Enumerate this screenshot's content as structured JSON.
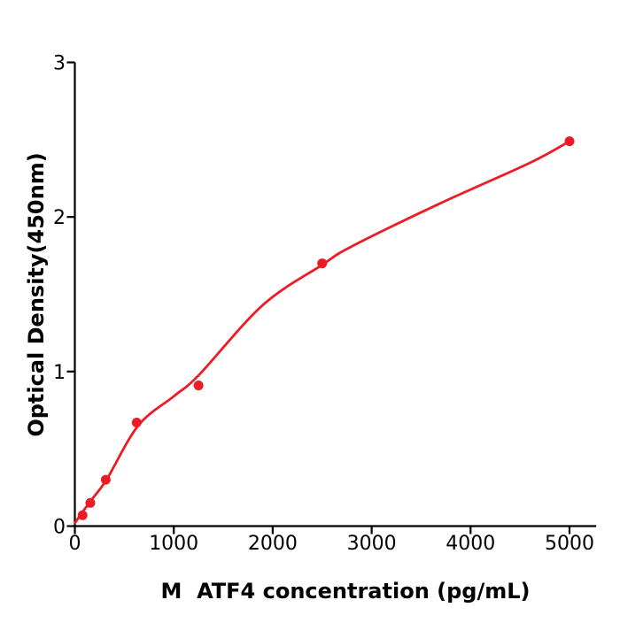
{
  "figure": {
    "background_color": "#ffffff",
    "axis_color": "#000000",
    "accent_color": "#ed1c24"
  },
  "chart_data": {
    "type": "scatter",
    "title": "",
    "xlabel": "M  ATF4 concentration (pg/mL)",
    "ylabel": "Optical Density(450nm)",
    "x_ticks": [
      "0",
      "1000",
      "2000",
      "3000",
      "4000",
      "5000"
    ],
    "x_tick_values": [
      0,
      1000,
      2000,
      3000,
      4000,
      5000
    ],
    "y_ticks": [
      "0",
      "1",
      "2",
      "3"
    ],
    "y_tick_values": [
      0,
      1,
      2,
      3
    ],
    "xlim": [
      0,
      5270
    ],
    "ylim": [
      0,
      3
    ],
    "grid": false,
    "legend": "none",
    "series": [
      {
        "name": "standard-points",
        "marker": "circle",
        "color": "#ed1c24",
        "points": [
          {
            "x": 78.125,
            "y": 0.07
          },
          {
            "x": 156.25,
            "y": 0.15
          },
          {
            "x": 312.5,
            "y": 0.3
          },
          {
            "x": 625,
            "y": 0.67
          },
          {
            "x": 1250,
            "y": 0.91
          },
          {
            "x": 2500,
            "y": 1.7
          },
          {
            "x": 5000,
            "y": 2.49
          }
        ]
      }
    ],
    "fit_curve": {
      "name": "fitted-standard-curve",
      "color": "#ed1c24",
      "x": [
        0,
        150,
        320,
        640,
        1000,
        1250,
        1900,
        2500,
        2800,
        3700,
        4600,
        5000
      ],
      "y": [
        0.02,
        0.155,
        0.3,
        0.65,
        0.84,
        0.975,
        1.43,
        1.69,
        1.81,
        2.09,
        2.35,
        2.49
      ]
    }
  }
}
